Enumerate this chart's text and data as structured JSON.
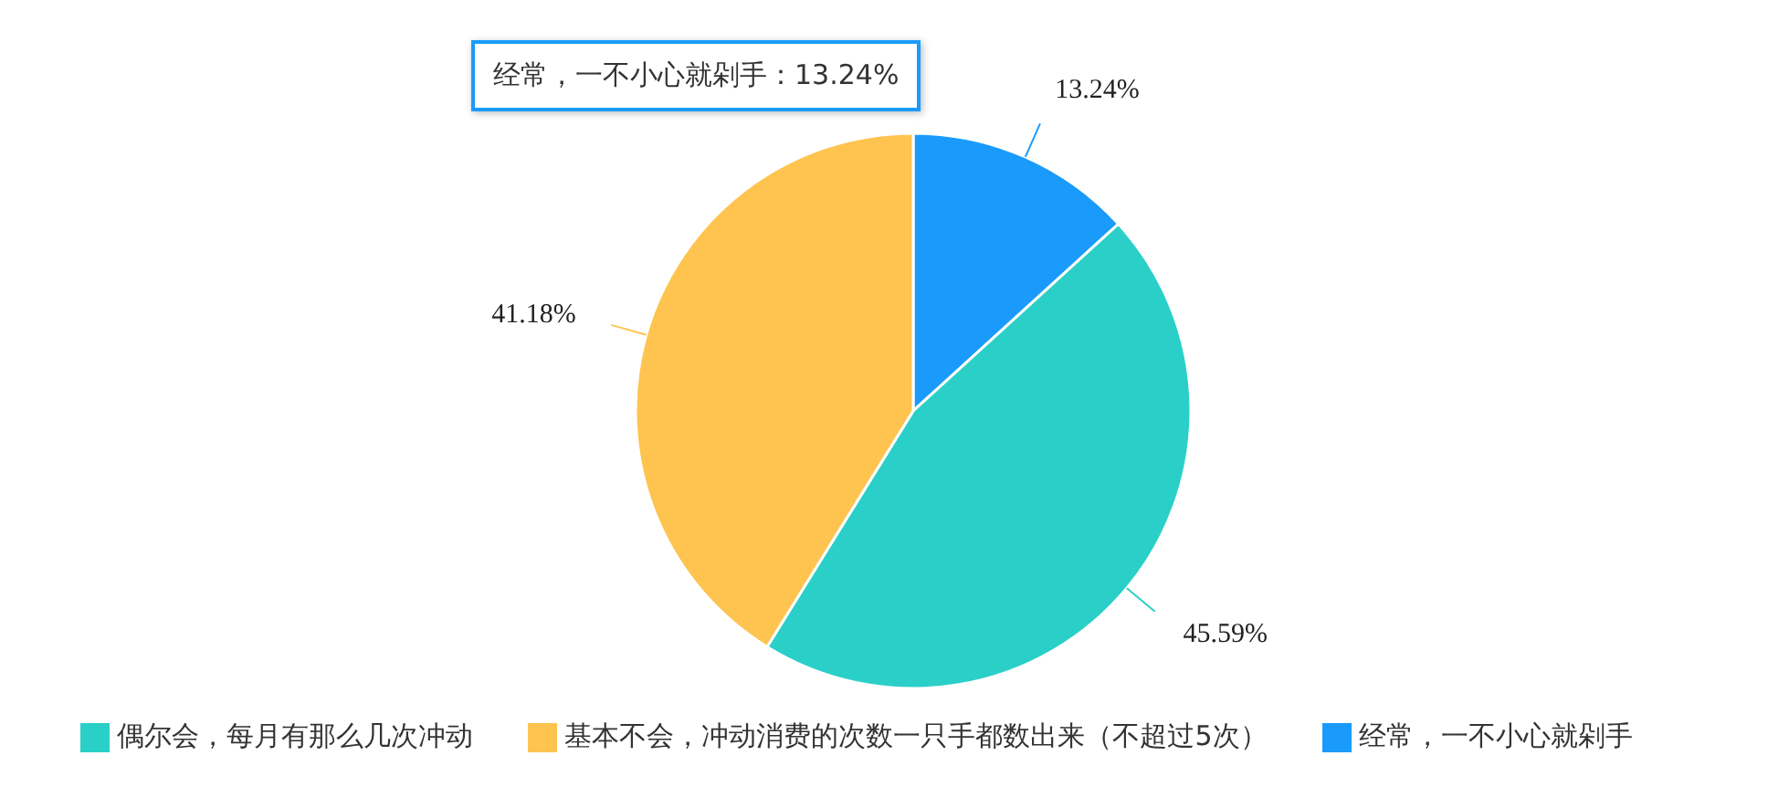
{
  "chart_data": {
    "type": "pie",
    "categories": [
      "经常，一不小心就剁手",
      "偶尔会，每月有那么几次冲动",
      "基本不会，冲动消费的次数一只手都数出来（不超过5次）"
    ],
    "values": [
      13.24,
      45.59,
      41.18
    ],
    "colors": [
      "#1a9bfc",
      "#2ad0c8",
      "#fec44f"
    ],
    "value_labels": [
      "13.24%",
      "45.59%",
      "41.18%"
    ],
    "annotations": [
      "经常，一不小心就剁手：13.24%"
    ],
    "legend": "bottom"
  }
}
